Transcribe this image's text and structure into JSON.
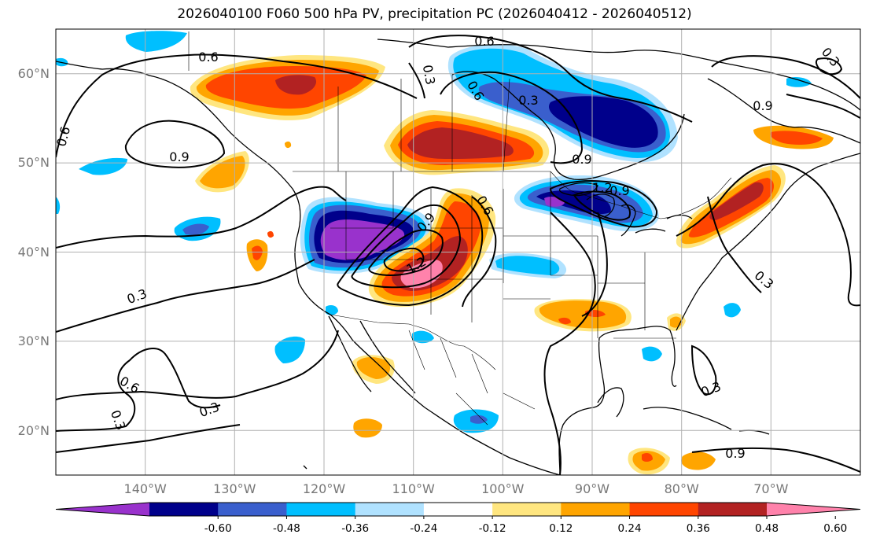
{
  "title": "2026040100 F060 500 hPa PV, precipitation PC (2026040412 - 2026040512)",
  "lat_ticks": [
    {
      "label": "60°N",
      "value": 60
    },
    {
      "label": "50°N",
      "value": 50
    },
    {
      "label": "40°N",
      "value": 40
    },
    {
      "label": "30°N",
      "value": 30
    },
    {
      "label": "20°N",
      "value": 20
    }
  ],
  "lon_ticks": [
    {
      "label": "140°W",
      "value": -140
    },
    {
      "label": "130°W",
      "value": -130
    },
    {
      "label": "120°W",
      "value": -120
    },
    {
      "label": "110°W",
      "value": -110
    },
    {
      "label": "100°W",
      "value": -100
    },
    {
      "label": "90°W",
      "value": -90
    },
    {
      "label": "80°W",
      "value": -80
    },
    {
      "label": "70°W",
      "value": -70
    }
  ],
  "map_extent": {
    "lon_min": -150,
    "lon_max": -60,
    "lat_min": 15,
    "lat_max": 65
  },
  "colorbar": {
    "boundaries": [
      "-0.60",
      "-0.48",
      "-0.36",
      "-0.24",
      "-0.12",
      "0.12",
      "0.24",
      "0.36",
      "0.48",
      "0.60"
    ],
    "colors": [
      "#9932cc",
      "#00008b",
      "#3a5fcd",
      "#00bfff",
      "#b0e2ff",
      "#ffffff",
      "#ffe680",
      "#ffa500",
      "#ff4500",
      "#b22222",
      "#ff82ab"
    ],
    "extend": "both"
  },
  "contour_labels": [
    "0.6",
    "0.6",
    "0.9",
    "0.6",
    "0.3",
    "0.9",
    "0.9",
    "0.6",
    "1.2",
    "0.9",
    "0.3",
    "0.3",
    "0.6",
    "0.3",
    "0.3",
    "0.3",
    "0.9",
    "0.3",
    "0.3",
    "1.2",
    "0.9",
    "0.6"
  ],
  "land_color": "#ffffff",
  "coast_color": "#000000",
  "grid_color": "#b0b0b0"
}
